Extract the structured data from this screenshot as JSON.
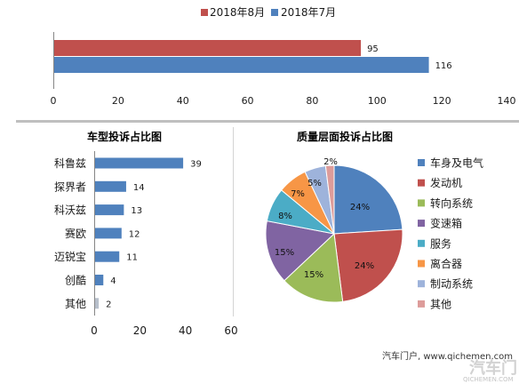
{
  "chart_data": [
    {
      "type": "bar",
      "orientation": "horizontal",
      "series": [
        {
          "name": "2018年8月",
          "values": [
            95
          ],
          "color": "#c0504d"
        },
        {
          "name": "2018年7月",
          "values": [
            116
          ],
          "color": "#4f81bd"
        }
      ],
      "xlim": [
        0,
        140
      ],
      "xticks": [
        0,
        20,
        40,
        60,
        80,
        100,
        120,
        140
      ],
      "data_labels": true,
      "legend": "top",
      "grid": false
    },
    {
      "type": "bar",
      "orientation": "horizontal",
      "title": "车型投诉占比图",
      "categories": [
        "科鲁兹",
        "探界者",
        "科沃兹",
        "赛欧",
        "迈锐宝",
        "创酷",
        "其他"
      ],
      "values": [
        39,
        14,
        13,
        12,
        11,
        4,
        2
      ],
      "bar_colors": [
        "#4f81bd",
        "#4f81bd",
        "#4f81bd",
        "#4f81bd",
        "#4f81bd",
        "#4f81bd",
        "#b7bfcb"
      ],
      "xlim": [
        0,
        60
      ],
      "xticks": [
        0,
        20,
        40,
        60
      ],
      "data_labels": true,
      "grid": false
    },
    {
      "type": "pie",
      "title": "质量层面投诉占比图",
      "labels": [
        "车身及电气",
        "发动机",
        "转向系统",
        "变速箱",
        "服务",
        "离合器",
        "制动系统",
        "其他"
      ],
      "values": [
        24,
        24,
        15,
        15,
        8,
        7,
        5,
        2
      ],
      "value_labels": [
        "24%",
        "24%",
        "15%",
        "15%",
        "8%",
        "7%",
        "5%",
        "2%"
      ],
      "colors": [
        "#4f81bd",
        "#c0504d",
        "#9bbb59",
        "#8064a2",
        "#4bacc6",
        "#f79646",
        "#9eb3db",
        "#dd9c9a"
      ],
      "legend": "right"
    }
  ],
  "watermark": {
    "text": "汽车门户, www.qichemen.com",
    "logo_text": "汽车门",
    "logo_subtext": "QICHEMEN.COM"
  }
}
